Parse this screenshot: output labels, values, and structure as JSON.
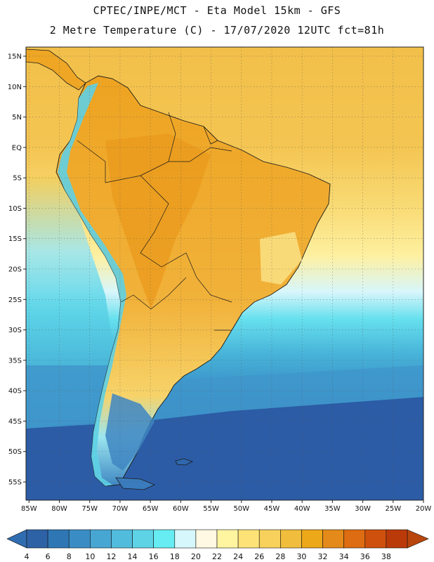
{
  "title": {
    "line1": "CPTEC/INPE/MCT -  Eta Model 15km - GFS",
    "line2": "2 Metre Temperature (C) - 17/07/2020 12UTC fct=81h"
  },
  "axes": {
    "lat_labels": [
      "15N",
      "10N",
      "5N",
      "EQ",
      "5S",
      "10S",
      "15S",
      "20S",
      "25S",
      "30S",
      "35S",
      "40S",
      "45S",
      "50S",
      "55S"
    ],
    "lat_values": [
      15,
      10,
      5,
      0,
      -5,
      -10,
      -15,
      -20,
      -25,
      -30,
      -35,
      -40,
      -45,
      -50,
      -55
    ],
    "lon_labels": [
      "85W",
      "80W",
      "75W",
      "70W",
      "65W",
      "60W",
      "55W",
      "50W",
      "45W",
      "40W",
      "35W",
      "30W",
      "25W",
      "20W"
    ],
    "lon_values": [
      -85,
      -80,
      -75,
      -70,
      -65,
      -60,
      -55,
      -50,
      -45,
      -40,
      -35,
      -30,
      -25,
      -20
    ],
    "lat_range": [
      -58,
      16.5
    ],
    "lon_range": [
      -85.5,
      -20
    ]
  },
  "colorbar": {
    "labels": [
      "4",
      "6",
      "8",
      "10",
      "12",
      "14",
      "16",
      "18",
      "20",
      "22",
      "24",
      "26",
      "28",
      "30",
      "32",
      "34",
      "36",
      "38"
    ],
    "colors": [
      "#2e62a6",
      "#2f76b4",
      "#3a8dc4",
      "#48a6d2",
      "#52bcdc",
      "#5fd3e6",
      "#66ecf2",
      "#d6f7fb",
      "#fff8e2",
      "#fff4a0",
      "#fde277",
      "#f8d15c",
      "#f0bd3d",
      "#eda81a",
      "#e48a1a",
      "#de6c12",
      "#cf500c",
      "#bb3a0a"
    ],
    "low_arrow_color": "#2f6cb0",
    "high_arrow_color": "#b8460d"
  },
  "legend_region_colors": {
    "ocean_south": "#2c5da5",
    "ocean_mid": "#44a2cf",
    "ocean_tropical": "#f5c94e",
    "land_tropical": "#eea623",
    "land_subtropical": "#f3b53c",
    "andes_cold": "#5ed0e4"
  }
}
